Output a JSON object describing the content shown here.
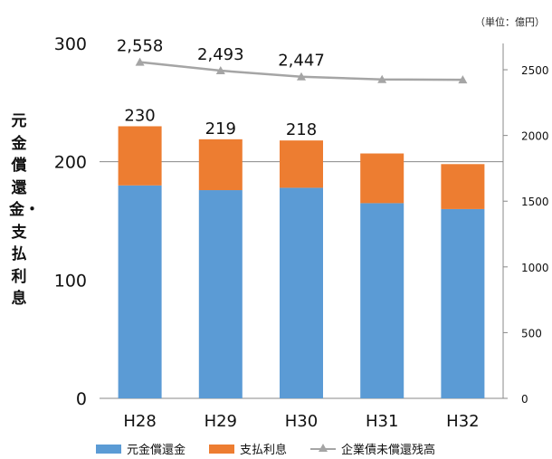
{
  "unit_note": "（単位：億円）",
  "y_axis_title": "元金償還金・支払利息",
  "legend": {
    "principal": "元金償還金",
    "interest": "支払利息",
    "balance": "企業債未償還残高"
  },
  "colors": {
    "principal": "#5b9bd5",
    "interest": "#ed7d31",
    "balance": "#a5a5a5"
  },
  "chart_data": {
    "type": "bar",
    "stacked": true,
    "categories": [
      "H28",
      "H29",
      "H30",
      "H31",
      "H32"
    ],
    "series": [
      {
        "name": "元金償還金",
        "axis": "left",
        "values": [
          180,
          176,
          178,
          165,
          160
        ]
      },
      {
        "name": "支払利息",
        "axis": "left",
        "values": [
          50,
          43,
          40,
          42,
          38
        ]
      },
      {
        "name": "企業債未償還残高",
        "axis": "right",
        "type": "line",
        "values": [
          2558,
          2493,
          2447,
          2426,
          2424
        ]
      }
    ],
    "bar_total_labels": [
      "230",
      "219",
      "218",
      "",
      ""
    ],
    "line_labels": [
      "2,558",
      "2,493",
      "2,447",
      "",
      ""
    ],
    "ylim": [
      0,
      300
    ],
    "y_ticks": [
      0,
      100,
      200,
      300
    ],
    "y2lim": [
      0,
      2700
    ],
    "y2_ticks": [
      0,
      500,
      1000,
      1500,
      2000,
      2500
    ],
    "gridlines": [
      200
    ],
    "legend_position": "bottom"
  }
}
